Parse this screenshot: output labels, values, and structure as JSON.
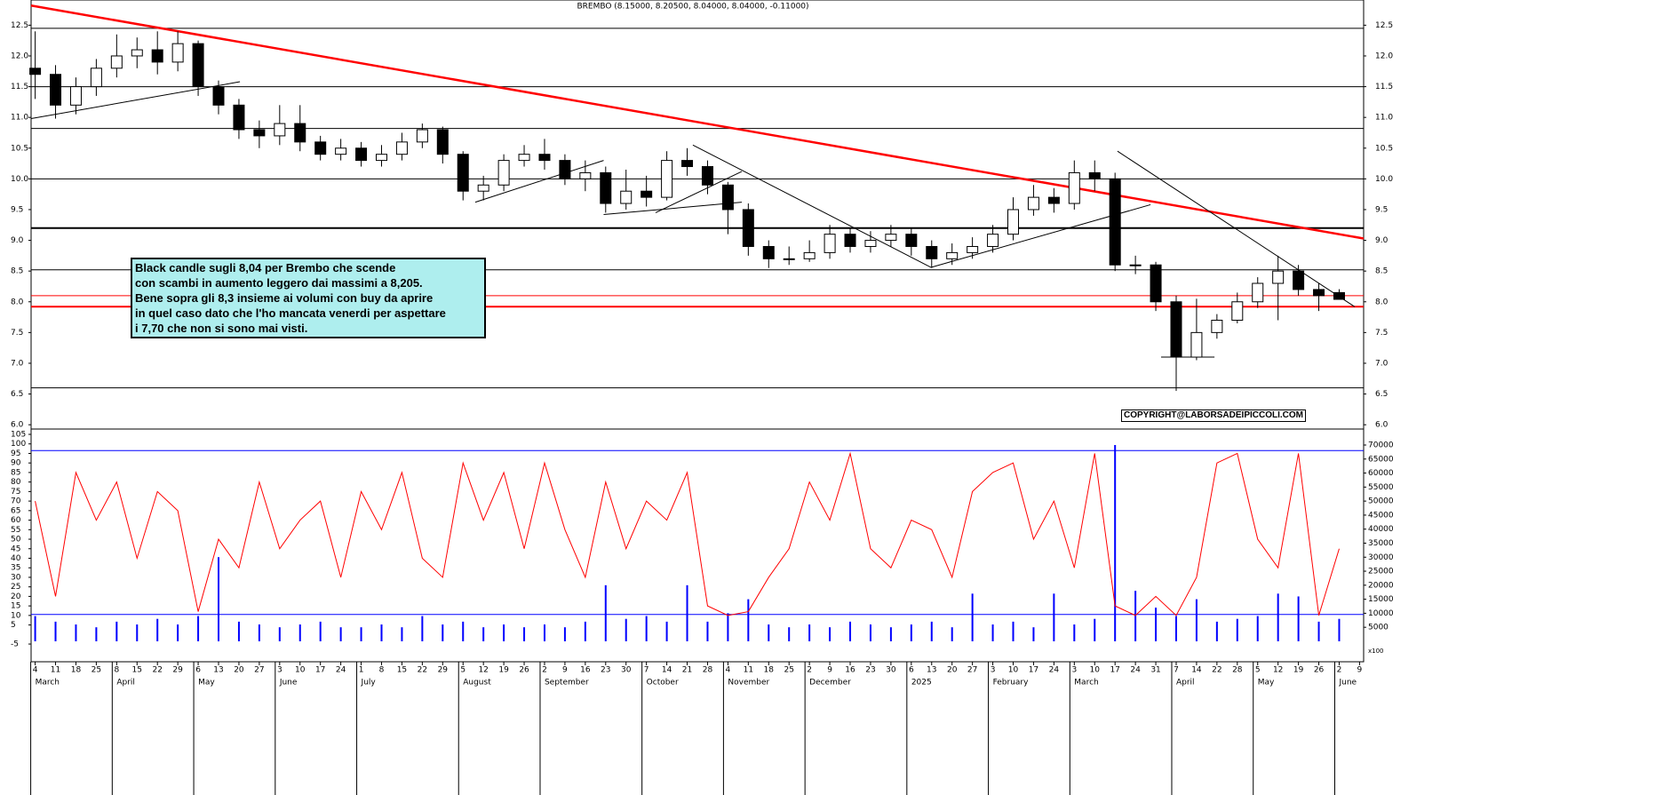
{
  "chart_data": {
    "type": "candlestick",
    "title": "BREMBO (8.15000, 8.20500, 8.04000, 8.04000, -0.11000)",
    "annotation": [
      "Black candle sugli 8,04 per Brembo che scende",
      "con scambi in aumento leggero dai massimi a 8,205.",
      "Bene sopra gli 8,3 insieme ai volumi con buy da aprire",
      "in quel caso dato che l'ho mancata venerdi per aspettare",
      "i 7,70 che non si sono mai visti."
    ],
    "copyright": "COPYRIGHT@LABORSADEIPICCOLI.COM",
    "xlim": [
      -0.2,
      65.2
    ],
    "xticks": [
      {
        "value": 0,
        "label": "4"
      },
      {
        "value": 1,
        "label": "11"
      },
      {
        "value": 2,
        "label": "18"
      },
      {
        "value": 3,
        "label": "25"
      },
      {
        "value": 4,
        "label": "8"
      },
      {
        "value": 5,
        "label": "15"
      },
      {
        "value": 6,
        "label": "22"
      },
      {
        "value": 7,
        "label": "29"
      },
      {
        "value": 8,
        "label": "6"
      },
      {
        "value": 9,
        "label": "13"
      },
      {
        "value": 10,
        "label": "20"
      },
      {
        "value": 11,
        "label": "27"
      },
      {
        "value": 12,
        "label": "3"
      },
      {
        "value": 13,
        "label": "10"
      },
      {
        "value": 14,
        "label": "17"
      },
      {
        "value": 15,
        "label": "24"
      },
      {
        "value": 16,
        "label": "1"
      },
      {
        "value": 17,
        "label": "8"
      },
      {
        "value": 18,
        "label": "15"
      },
      {
        "value": 19,
        "label": "22"
      },
      {
        "value": 20,
        "label": "29"
      },
      {
        "value": 21,
        "label": "5"
      },
      {
        "value": 22,
        "label": "12"
      },
      {
        "value": 23,
        "label": "19"
      },
      {
        "value": 24,
        "label": "26"
      },
      {
        "value": 25,
        "label": "2"
      },
      {
        "value": 26,
        "label": "9"
      },
      {
        "value": 27,
        "label": "16"
      },
      {
        "value": 28,
        "label": "23"
      },
      {
        "value": 29,
        "label": "30"
      },
      {
        "value": 30,
        "label": "7"
      },
      {
        "value": 31,
        "label": "14"
      },
      {
        "value": 32,
        "label": "21"
      },
      {
        "value": 33,
        "label": "28"
      },
      {
        "value": 34,
        "label": "4"
      },
      {
        "value": 35,
        "label": "11"
      },
      {
        "value": 36,
        "label": "18"
      },
      {
        "value": 37,
        "label": "25"
      },
      {
        "value": 38,
        "label": "2"
      },
      {
        "value": 39,
        "label": "9"
      },
      {
        "value": 40,
        "label": "16"
      },
      {
        "value": 41,
        "label": "23"
      },
      {
        "value": 42,
        "label": "30"
      },
      {
        "value": 43,
        "label": "6"
      },
      {
        "value": 44,
        "label": "13"
      },
      {
        "value": 45,
        "label": "20"
      },
      {
        "value": 46,
        "label": "27"
      },
      {
        "value": 47,
        "label": "3"
      },
      {
        "value": 48,
        "label": "10"
      },
      {
        "value": 49,
        "label": "17"
      },
      {
        "value": 50,
        "label": "24"
      },
      {
        "value": 51,
        "label": "3"
      },
      {
        "value": 52,
        "label": "10"
      },
      {
        "value": 53,
        "label": "17"
      },
      {
        "value": 54,
        "label": "24"
      },
      {
        "value": 55,
        "label": "31"
      },
      {
        "value": 56,
        "label": "7"
      },
      {
        "value": 57,
        "label": "14"
      },
      {
        "value": 58,
        "label": "22"
      },
      {
        "value": 59,
        "label": "28"
      },
      {
        "value": 60,
        "label": "5"
      },
      {
        "value": 61,
        "label": "12"
      },
      {
        "value": 62,
        "label": "19"
      },
      {
        "value": 63,
        "label": "26"
      },
      {
        "value": 64,
        "label": "2"
      },
      {
        "value": 65,
        "label": "9"
      }
    ],
    "month_ticks": [
      {
        "value": 0,
        "label": "March"
      },
      {
        "value": 4,
        "label": "April"
      },
      {
        "value": 8,
        "label": "May"
      },
      {
        "value": 12,
        "label": "June"
      },
      {
        "value": 16,
        "label": "July"
      },
      {
        "value": 21,
        "label": "August"
      },
      {
        "value": 25,
        "label": "September"
      },
      {
        "value": 30,
        "label": "October"
      },
      {
        "value": 34,
        "label": "November"
      },
      {
        "value": 38,
        "label": "December"
      },
      {
        "value": 43,
        "label": "2025"
      },
      {
        "value": 47,
        "label": "February"
      },
      {
        "value": 51,
        "label": "March"
      },
      {
        "value": 56,
        "label": "April"
      },
      {
        "value": 60,
        "label": "May"
      },
      {
        "value": 64,
        "label": "June"
      }
    ],
    "ylim": [
      5.93,
      12.91
    ],
    "yticks": [
      12.5,
      {
        "value": 12,
        "label": "12.0"
      },
      11.5,
      {
        "value": 11,
        "label": "11.0"
      },
      10.5,
      {
        "value": 10,
        "label": "10.0"
      },
      9.5,
      {
        "value": 9,
        "label": "9.0"
      },
      8.5,
      {
        "value": 8,
        "label": "8.0"
      },
      7.5,
      {
        "value": 7,
        "label": "7.0"
      },
      6.5,
      {
        "value": 6,
        "label": "6.0"
      }
    ],
    "open": [
      11.8,
      11.7,
      11.2,
      11.5,
      11.8,
      12.0,
      12.1,
      11.9,
      12.2,
      11.5,
      11.2,
      10.8,
      10.7,
      10.9,
      10.6,
      10.4,
      10.5,
      10.3,
      10.4,
      10.6,
      10.8,
      10.4,
      9.8,
      9.9,
      10.3,
      10.4,
      10.3,
      10.0,
      10.1,
      9.6,
      9.8,
      9.7,
      10.3,
      10.2,
      9.9,
      9.5,
      8.9,
      8.7,
      8.7,
      8.8,
      9.1,
      8.9,
      9.0,
      9.1,
      8.9,
      8.7,
      8.8,
      8.9,
      9.1,
      9.5,
      9.7,
      9.6,
      10.1,
      10.0,
      8.6,
      8.6,
      8.0,
      7.1,
      7.5,
      7.7,
      8.0,
      8.3,
      8.5,
      8.2,
      8.15
    ],
    "high": [
      12.4,
      11.85,
      11.65,
      11.95,
      12.35,
      12.3,
      12.4,
      12.4,
      12.25,
      11.6,
      11.3,
      10.95,
      11.2,
      11.2,
      10.7,
      10.65,
      10.6,
      10.55,
      10.75,
      10.9,
      10.85,
      10.45,
      10.05,
      10.4,
      10.55,
      10.65,
      10.4,
      10.3,
      10.2,
      10.15,
      10.05,
      10.45,
      10.5,
      10.3,
      9.95,
      9.6,
      9.0,
      8.9,
      9.0,
      9.25,
      9.2,
      9.15,
      9.25,
      9.2,
      9.0,
      8.95,
      9.05,
      9.25,
      9.7,
      9.9,
      9.85,
      10.3,
      10.3,
      10.1,
      8.75,
      8.65,
      8.1,
      8.05,
      7.8,
      8.15,
      8.4,
      8.75,
      8.6,
      8.3,
      8.205
    ],
    "low": [
      11.3,
      10.98,
      11.05,
      11.35,
      11.65,
      11.8,
      11.7,
      11.75,
      11.35,
      11.05,
      10.65,
      10.5,
      10.55,
      10.45,
      10.3,
      10.3,
      10.2,
      10.2,
      10.3,
      10.5,
      10.25,
      9.65,
      9.65,
      9.8,
      10.2,
      10.15,
      9.9,
      9.8,
      9.45,
      9.5,
      9.55,
      9.65,
      10.05,
      9.75,
      9.1,
      8.75,
      8.55,
      8.6,
      8.65,
      8.7,
      8.8,
      8.8,
      8.9,
      8.75,
      8.55,
      8.6,
      8.7,
      8.8,
      9.0,
      9.4,
      9.45,
      9.5,
      9.8,
      8.5,
      8.45,
      7.85,
      6.55,
      7.05,
      7.4,
      7.65,
      7.9,
      7.7,
      8.1,
      7.85,
      8.04
    ],
    "close": [
      11.7,
      11.2,
      11.5,
      11.8,
      12.0,
      12.1,
      11.9,
      12.2,
      11.5,
      11.2,
      10.8,
      10.7,
      10.9,
      10.6,
      10.4,
      10.5,
      10.3,
      10.4,
      10.6,
      10.8,
      10.4,
      9.8,
      9.9,
      10.3,
      10.4,
      10.3,
      10.0,
      10.1,
      9.6,
      9.8,
      9.7,
      10.3,
      10.2,
      9.9,
      9.5,
      8.9,
      8.7,
      8.7,
      8.8,
      9.1,
      8.9,
      9.0,
      9.1,
      8.9,
      8.7,
      8.8,
      8.9,
      9.1,
      9.5,
      9.7,
      9.6,
      10.1,
      10.0,
      8.6,
      8.6,
      8.0,
      7.1,
      7.5,
      7.7,
      8.0,
      8.3,
      8.5,
      8.2,
      8.1,
      8.04
    ],
    "hlines": [
      {
        "y": 12.45,
        "color": "#000000",
        "width": 1
      },
      {
        "y": 11.5,
        "color": "#000000",
        "width": 1
      },
      {
        "y": 10.82,
        "color": "#000000",
        "width": 1
      },
      {
        "y": 10.0,
        "color": "#000000",
        "width": 1
      },
      {
        "y": 9.2,
        "color": "#000000",
        "width": 2
      },
      {
        "y": 8.52,
        "color": "#000000",
        "width": 1
      },
      {
        "y": 6.6,
        "color": "#000000",
        "width": 1
      },
      {
        "y": 8.1,
        "color": "#ff0000",
        "width": 1
      },
      {
        "y": 7.92,
        "color": "#ff0000",
        "width": 2
      }
    ],
    "trendlines": [
      {
        "x1": -0.2,
        "y1": 12.82,
        "x2": 65.2,
        "y2": 9.03,
        "color": "#ff0000",
        "width": 2.5
      },
      {
        "x1": -0.2,
        "y1": 10.98,
        "x2": 10.05,
        "y2": 11.58,
        "color": "#000000",
        "width": 1
      },
      {
        "x1": 21.6,
        "y1": 9.62,
        "x2": 27.9,
        "y2": 10.3,
        "color": "#000000",
        "width": 1
      },
      {
        "x1": 27.9,
        "y1": 9.42,
        "x2": 34.68,
        "y2": 9.62,
        "color": "#000000",
        "width": 1
      },
      {
        "x1": 30.45,
        "y1": 9.45,
        "x2": 34.68,
        "y2": 10.12,
        "color": "#000000",
        "width": 1
      },
      {
        "x1": 32.28,
        "y1": 10.55,
        "x2": 43.97,
        "y2": 8.56,
        "color": "#000000",
        "width": 1
      },
      {
        "x1": 43.97,
        "y1": 8.56,
        "x2": 54.74,
        "y2": 9.58,
        "color": "#000000",
        "width": 1
      },
      {
        "x1": 53.12,
        "y1": 10.45,
        "x2": 64.76,
        "y2": 7.92,
        "color": "#000000",
        "width": 1
      },
      {
        "x1": 55.26,
        "y1": 7.1,
        "x2": 57.88,
        "y2": 7.1,
        "color": "#000000",
        "width": 1
      }
    ],
    "osc_ylim": [
      -14.3,
      107.8
    ],
    "osc_yticks": [
      105,
      100,
      95,
      90,
      85,
      80,
      75,
      70,
      65,
      60,
      55,
      50,
      45,
      40,
      35,
      30,
      25,
      20,
      15,
      10,
      5,
      -5
    ],
    "osc_hlines": [
      96.5,
      10.5
    ],
    "oscillator": {
      "color": "#ff0000",
      "values": [
        70,
        20,
        85,
        60,
        80,
        40,
        75,
        65,
        12,
        50,
        35,
        80,
        45,
        60,
        70,
        30,
        75,
        55,
        85,
        40,
        30,
        90,
        60,
        85,
        45,
        90,
        55,
        30,
        80,
        45,
        70,
        60,
        85,
        15,
        10,
        12,
        30,
        45,
        80,
        60,
        95,
        45,
        35,
        60,
        55,
        30,
        75,
        85,
        90,
        50,
        70,
        35,
        95,
        15,
        10,
        20,
        10,
        30,
        90,
        95,
        50,
        35,
        95,
        10,
        45
      ]
    },
    "y2lim": [
      -7300,
      75700
    ],
    "y2ticks": [
      70000,
      65000,
      60000,
      55000,
      50000,
      45000,
      40000,
      35000,
      30000,
      25000,
      20000,
      15000,
      10000,
      5000
    ],
    "y2_note": "x100",
    "volume": {
      "color": "#0000ff",
      "values": [
        9000,
        7000,
        6000,
        5000,
        7000,
        6000,
        8000,
        6000,
        9000,
        30000,
        7000,
        6000,
        5000,
        6000,
        7000,
        5000,
        5000,
        6000,
        5000,
        9000,
        6000,
        7000,
        5000,
        6000,
        5000,
        6000,
        5000,
        7000,
        20000,
        8000,
        9000,
        7000,
        20000,
        7000,
        10000,
        15000,
        6000,
        5000,
        6000,
        5000,
        7000,
        6000,
        5000,
        6000,
        7000,
        5000,
        17000,
        6000,
        7000,
        5000,
        17000,
        6000,
        8000,
        70000,
        18000,
        12000,
        9000,
        15000,
        7000,
        8000,
        9000,
        17000,
        16000,
        7000,
        8000
      ]
    }
  }
}
